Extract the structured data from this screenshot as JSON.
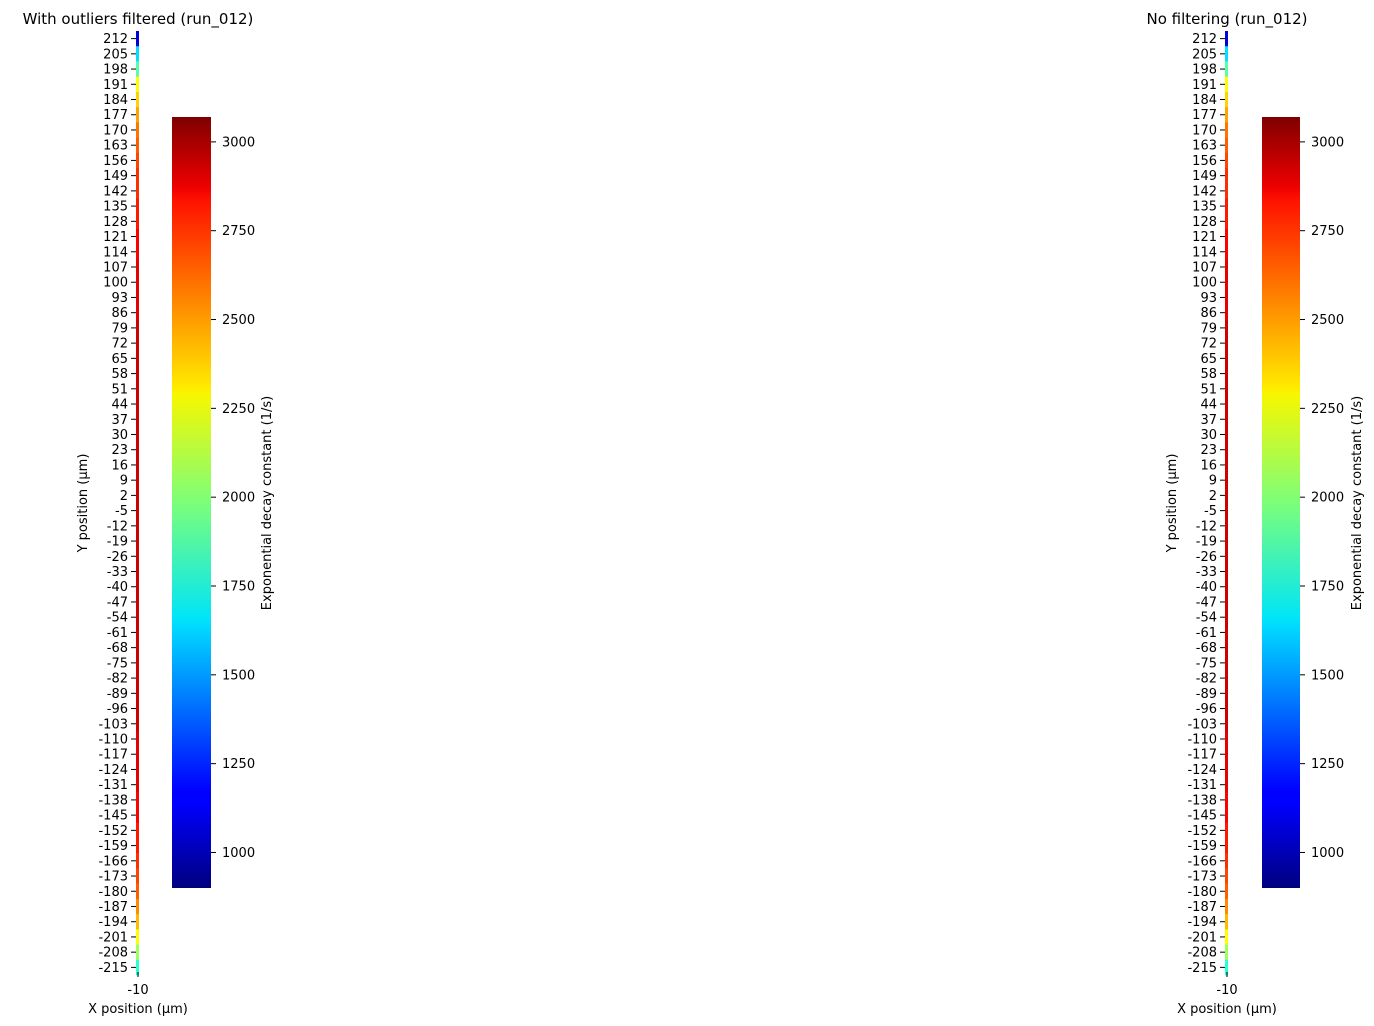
{
  "chart_data": [
    {
      "type": "heatmap",
      "title": "With outliers filtered (run_012)",
      "xlabel": "X position (µm)",
      "ylabel": "Y position (µm)",
      "x_ticks": [
        "-10"
      ],
      "y_ticks": [
        "212",
        "205",
        "198",
        "191",
        "184",
        "177",
        "170",
        "163",
        "156",
        "149",
        "142",
        "135",
        "128",
        "121",
        "114",
        "107",
        "100",
        "93",
        "86",
        "79",
        "72",
        "65",
        "58",
        "51",
        "44",
        "37",
        "30",
        "23",
        "16",
        "9",
        "2",
        "-5",
        "-12",
        "-19",
        "-26",
        "-33",
        "-40",
        "-47",
        "-54",
        "-61",
        "-68",
        "-75",
        "-82",
        "-89",
        "-96",
        "-103",
        "-110",
        "-117",
        "-124",
        "-131",
        "-138",
        "-145",
        "-152",
        "-159",
        "-166",
        "-173",
        "-180",
        "-187",
        "-194",
        "-201",
        "-208",
        "-215"
      ],
      "values": [
        1100,
        1650,
        1900,
        2250,
        2350,
        2450,
        2550,
        2600,
        2650,
        2700,
        2700,
        2750,
        2750,
        2800,
        2800,
        2850,
        2850,
        2850,
        2850,
        2900,
        2900,
        2900,
        2900,
        2900,
        2900,
        2900,
        2900,
        2900,
        2900,
        2900,
        2900,
        2900,
        2900,
        2900,
        2900,
        2900,
        2900,
        2900,
        2900,
        2900,
        2900,
        2900,
        2900,
        2900,
        2900,
        2900,
        2850,
        2850,
        2850,
        2850,
        2800,
        2800,
        2750,
        2750,
        2700,
        2650,
        2600,
        2500,
        2400,
        2250,
        2050,
        1800
      ],
      "colorbar": {
        "label": "Exponential decay constant (1/s)",
        "min": 900,
        "max": 3070,
        "ticks": [
          1000,
          1250,
          1500,
          1750,
          2000,
          2250,
          2500,
          2750,
          3000
        ],
        "colormap": "jet"
      }
    },
    {
      "type": "heatmap",
      "title": "No filtering (run_012)",
      "xlabel": "X position (µm)",
      "ylabel": "Y position (µm)",
      "x_ticks": [
        "-10"
      ],
      "y_ticks": [
        "212",
        "205",
        "198",
        "191",
        "184",
        "177",
        "170",
        "163",
        "156",
        "149",
        "142",
        "135",
        "128",
        "121",
        "114",
        "107",
        "100",
        "93",
        "86",
        "79",
        "72",
        "65",
        "58",
        "51",
        "44",
        "37",
        "30",
        "23",
        "16",
        "9",
        "2",
        "-5",
        "-12",
        "-19",
        "-26",
        "-33",
        "-40",
        "-47",
        "-54",
        "-61",
        "-68",
        "-75",
        "-82",
        "-89",
        "-96",
        "-103",
        "-110",
        "-117",
        "-124",
        "-131",
        "-138",
        "-145",
        "-152",
        "-159",
        "-166",
        "-173",
        "-180",
        "-187",
        "-194",
        "-201",
        "-208",
        "-215"
      ],
      "values": [
        1100,
        1650,
        1900,
        2250,
        2350,
        2450,
        2550,
        2600,
        2650,
        2700,
        2700,
        2750,
        2750,
        2800,
        2800,
        2850,
        2850,
        2850,
        2850,
        2900,
        2900,
        2900,
        2900,
        2900,
        2900,
        2900,
        2900,
        2900,
        2900,
        2900,
        2900,
        2900,
        2900,
        2900,
        2900,
        2900,
        2900,
        2900,
        2900,
        2900,
        2900,
        2900,
        2900,
        2900,
        2900,
        2900,
        2850,
        2850,
        2850,
        2850,
        2800,
        2800,
        2750,
        2750,
        2700,
        2650,
        2600,
        2500,
        2400,
        2250,
        2050,
        1800
      ],
      "colorbar": {
        "label": "Exponential decay constant (1/s)",
        "min": 900,
        "max": 3070,
        "ticks": [
          1000,
          1250,
          1500,
          1750,
          2000,
          2250,
          2500,
          2750,
          3000
        ],
        "colormap": "jet"
      }
    }
  ]
}
